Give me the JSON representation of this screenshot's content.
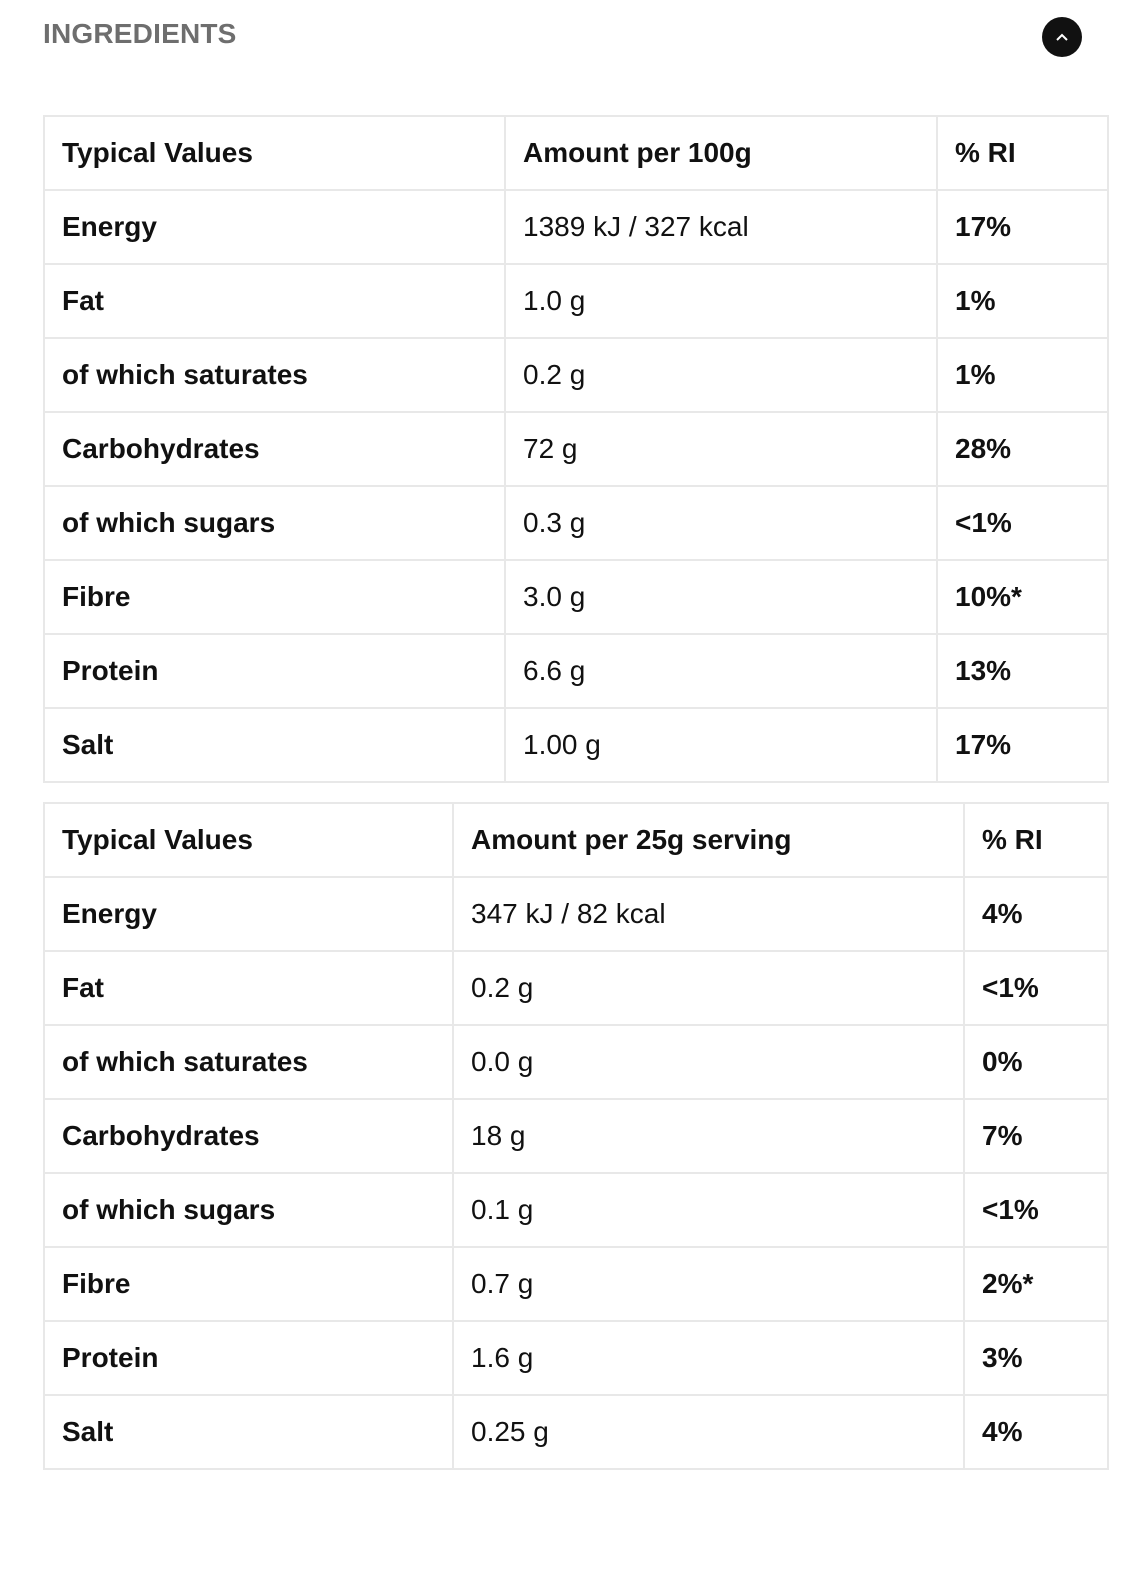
{
  "header": {
    "title": "INGREDIENTS"
  },
  "tables": [
    {
      "headers": [
        "Typical Values",
        "Amount per 100g",
        "% RI"
      ],
      "rows": [
        [
          "Energy",
          "1389 kJ / 327 kcal",
          "17%"
        ],
        [
          "Fat",
          "1.0 g",
          "1%"
        ],
        [
          "of which saturates",
          "0.2 g",
          "1%"
        ],
        [
          "Carbohydrates",
          "72 g",
          "28%"
        ],
        [
          "of which sugars",
          "0.3 g",
          "<1%"
        ],
        [
          "Fibre",
          "3.0 g",
          "10%*"
        ],
        [
          "Protein",
          "6.6 g",
          "13%"
        ],
        [
          "Salt",
          "1.00 g",
          "17%"
        ]
      ]
    },
    {
      "headers": [
        "Typical Values",
        "Amount per 25g serving",
        "% RI"
      ],
      "rows": [
        [
          "Energy",
          "347 kJ / 82 kcal",
          "4%"
        ],
        [
          "Fat",
          "0.2 g",
          "<1%"
        ],
        [
          "of which saturates",
          "0.0 g",
          "0%"
        ],
        [
          "Carbohydrates",
          "18 g",
          "7%"
        ],
        [
          "of which sugars",
          "0.1 g",
          "<1%"
        ],
        [
          "Fibre",
          "0.7 g",
          "2%*"
        ],
        [
          "Protein",
          "1.6 g",
          "3%"
        ],
        [
          "Salt",
          "0.25 g",
          "4%"
        ]
      ]
    }
  ]
}
